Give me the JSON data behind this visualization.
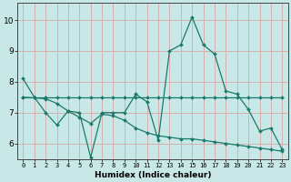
{
  "xlabel": "Humidex (Indice chaleur)",
  "bg_color": "#c8e8e8",
  "grid_color": "#d8a8a8",
  "line_color": "#1a7a6a",
  "x_ticks": [
    0,
    1,
    2,
    3,
    4,
    5,
    6,
    7,
    8,
    9,
    10,
    11,
    12,
    13,
    14,
    15,
    16,
    17,
    18,
    19,
    20,
    21,
    22,
    23
  ],
  "y_ticks": [
    6,
    7,
    8,
    9,
    10
  ],
  "ylim": [
    5.5,
    10.55
  ],
  "xlim": [
    -0.5,
    23.5
  ],
  "series1_x": [
    0,
    1,
    2,
    3,
    4,
    5,
    6,
    7,
    8,
    9,
    10,
    11,
    12,
    13,
    14,
    15,
    16,
    17,
    18,
    19,
    20,
    21,
    22,
    23
  ],
  "series1_y": [
    8.1,
    7.5,
    7.0,
    6.6,
    7.05,
    7.0,
    5.55,
    7.0,
    7.0,
    7.0,
    7.6,
    7.35,
    6.1,
    9.0,
    9.2,
    10.1,
    9.2,
    8.9,
    7.7,
    7.6,
    7.1,
    6.4,
    6.5,
    5.8
  ],
  "series2_x": [
    0,
    1,
    2,
    3,
    4,
    5,
    6,
    7,
    8,
    9,
    10,
    11,
    12,
    13,
    14,
    15,
    16,
    17,
    18,
    19,
    20,
    21,
    22,
    23
  ],
  "series2_y": [
    7.5,
    7.5,
    7.5,
    7.5,
    7.5,
    7.5,
    7.5,
    7.5,
    7.5,
    7.5,
    7.5,
    7.5,
    7.5,
    7.5,
    7.5,
    7.5,
    7.5,
    7.5,
    7.5,
    7.5,
    7.5,
    7.5,
    7.5,
    7.5
  ],
  "series3_x": [
    0,
    1,
    2,
    3,
    4,
    5,
    6,
    7,
    8,
    9,
    10,
    11,
    12,
    13,
    14,
    15,
    16,
    17,
    18,
    19,
    20,
    21,
    22,
    23
  ],
  "series3_y": [
    7.5,
    7.48,
    7.45,
    7.3,
    7.05,
    6.85,
    6.65,
    6.95,
    6.9,
    6.75,
    6.5,
    6.35,
    6.25,
    6.2,
    6.15,
    6.15,
    6.1,
    6.05,
    6.0,
    5.95,
    5.9,
    5.85,
    5.8,
    5.75
  ],
  "markersize": 2.0,
  "linewidth": 0.9,
  "tick_fontsize_x": 5.0,
  "tick_fontsize_y": 6.5,
  "xlabel_fontsize": 6.5
}
